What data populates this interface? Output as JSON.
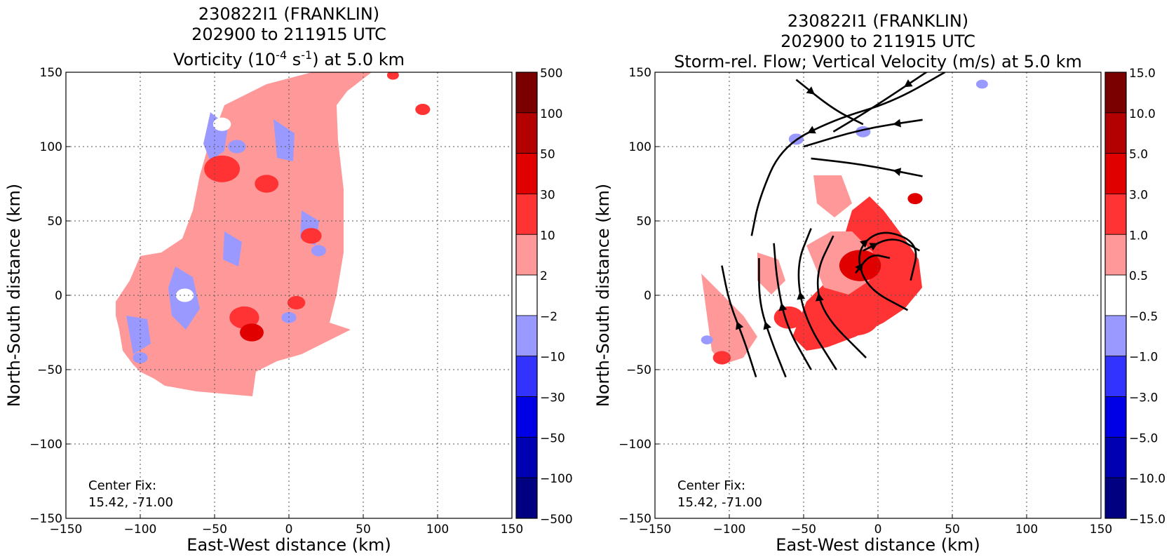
{
  "chart_data": [
    {
      "type": "heatmap",
      "title_lines": [
        "230822I1 (FRANKLIN)",
        "202900 to 211915 UTC"
      ],
      "title_quantity": {
        "pre": "Vorticity (10",
        "sup1": "-4",
        "mid": " s",
        "sup2": "-1",
        "post": ") at 5.0 km"
      },
      "xlabel": "East-West distance (km)",
      "ylabel": "North-South distance (km)",
      "xlim": [
        -150,
        150
      ],
      "ylim": [
        -150,
        150
      ],
      "xticks": [
        -150,
        -100,
        -50,
        0,
        50,
        100,
        150
      ],
      "yticks": [
        -150,
        -100,
        -50,
        0,
        50,
        100,
        150
      ],
      "grid": true,
      "annotation": [
        "Center Fix:",
        "15.42, -71.00"
      ],
      "colorbar": {
        "levels": [
          "500",
          "100",
          "50",
          "30",
          "10",
          "2",
          "−2",
          "−10",
          "−30",
          "−50",
          "−100",
          "−500"
        ],
        "colors": [
          "#7a0000",
          "#b30000",
          "#e00000",
          "#ff3333",
          "#ff9999",
          "#ffffff",
          "#9999ff",
          "#3333ff",
          "#0000e6",
          "#0000b3",
          "#000080"
        ]
      },
      "blobs": [
        {
          "x": 90,
          "y": 125,
          "r": 5,
          "v": 10
        },
        {
          "x": 70,
          "y": 148,
          "r": 4,
          "v": 10
        },
        {
          "x": -45,
          "y": 85,
          "r": 12,
          "v": 10
        },
        {
          "x": -15,
          "y": 75,
          "r": 8,
          "v": 10
        },
        {
          "x": 15,
          "y": 40,
          "r": 7,
          "v": 10
        },
        {
          "x": -30,
          "y": -15,
          "r": 10,
          "v": 10
        },
        {
          "x": -25,
          "y": -25,
          "r": 8,
          "v": 30
        },
        {
          "x": 5,
          "y": -5,
          "r": 6,
          "v": 10
        },
        {
          "x": -45,
          "y": 115,
          "r": 6,
          "v": -2
        },
        {
          "x": -35,
          "y": 100,
          "r": 6,
          "v": -10
        },
        {
          "x": 20,
          "y": 30,
          "r": 5,
          "v": -10
        },
        {
          "x": -100,
          "y": -42,
          "r": 5,
          "v": -10
        },
        {
          "x": 0,
          "y": -15,
          "r": 5,
          "v": -10
        },
        {
          "x": -70,
          "y": 0,
          "r": 6,
          "v": -2
        }
      ]
    },
    {
      "type": "heatmap",
      "title_lines": [
        "230822I1 (FRANKLIN)",
        "202900 to 211915 UTC"
      ],
      "title_quantity": {
        "pre": "Storm-rel. Flow; Vertical Velocity (m/s) at 5.0 km",
        "sup1": "",
        "mid": "",
        "sup2": "",
        "post": ""
      },
      "xlabel": "East-West distance (km)",
      "ylabel": "North-South distance (km)",
      "xlim": [
        -150,
        150
      ],
      "ylim": [
        -150,
        150
      ],
      "xticks": [
        -150,
        -100,
        -50,
        0,
        50,
        100,
        150
      ],
      "yticks": [
        -150,
        -100,
        -50,
        0,
        50,
        100,
        150
      ],
      "grid": true,
      "annotation": [
        "Center Fix:",
        "15.42, -71.00"
      ],
      "colorbar": {
        "levels": [
          "15.0",
          "10.0",
          "5.0",
          "3.0",
          "1.0",
          "0.5",
          "−0.5",
          "−1.0",
          "−3.0",
          "−5.0",
          "−10.0",
          "−15.0"
        ],
        "colors": [
          "#7a0000",
          "#b30000",
          "#e00000",
          "#ff3333",
          "#ff9999",
          "#ffffff",
          "#9999ff",
          "#3333ff",
          "#0000e6",
          "#0000b3",
          "#000080"
        ]
      },
      "blobs": [
        {
          "x": -12,
          "y": 20,
          "r": 14,
          "v": 3
        },
        {
          "x": -15,
          "y": -15,
          "r": 16,
          "v": 1
        },
        {
          "x": 25,
          "y": 65,
          "r": 5,
          "v": 3
        },
        {
          "x": -60,
          "y": -15,
          "r": 10,
          "v": 1
        },
        {
          "x": -105,
          "y": -42,
          "r": 6,
          "v": 1
        },
        {
          "x": -55,
          "y": 105,
          "r": 5,
          "v": -1
        },
        {
          "x": -10,
          "y": 110,
          "r": 5,
          "v": -1
        },
        {
          "x": 70,
          "y": 142,
          "r": 4,
          "v": -1
        },
        {
          "x": -115,
          "y": -30,
          "r": 4,
          "v": -1
        }
      ],
      "streamlines": [
        [
          [
            -82,
            -55
          ],
          [
            -90,
            -30
          ],
          [
            -100,
            -5
          ],
          [
            -105,
            20
          ]
        ],
        [
          [
            -62,
            -55
          ],
          [
            -72,
            -30
          ],
          [
            -80,
            -5
          ],
          [
            -80,
            25
          ]
        ],
        [
          [
            -45,
            -50
          ],
          [
            -62,
            -20
          ],
          [
            -68,
            10
          ],
          [
            -70,
            35
          ]
        ],
        [
          [
            -28,
            -50
          ],
          [
            -50,
            -15
          ],
          [
            -55,
            20
          ],
          [
            -45,
            45
          ]
        ],
        [
          [
            -8,
            -42
          ],
          [
            -38,
            -12
          ],
          [
            -42,
            15
          ],
          [
            -30,
            40
          ]
        ],
        [
          [
            20,
            -10
          ],
          [
            -8,
            5
          ],
          [
            -15,
            30
          ],
          [
            2,
            45
          ],
          [
            28,
            35
          ],
          [
            22,
            10
          ]
        ],
        [
          [
            -10,
            30
          ],
          [
            10,
            40
          ],
          [
            28,
            30
          ]
        ],
        [
          [
            -15,
            15
          ],
          [
            -5,
            28
          ],
          [
            8,
            25
          ]
        ],
        [
          [
            30,
            80
          ],
          [
            -10,
            88
          ],
          [
            -45,
            92
          ]
        ],
        [
          [
            30,
            118
          ],
          [
            -10,
            112
          ],
          [
            -50,
            100
          ]
        ],
        [
          [
            45,
            150
          ],
          [
            10,
            130
          ],
          [
            -30,
            118
          ],
          [
            -65,
            100
          ],
          [
            -80,
            65
          ],
          [
            -85,
            40
          ]
        ],
        [
          [
            40,
            155
          ],
          [
            -5,
            125
          ],
          [
            -30,
            110
          ]
        ],
        [
          [
            -55,
            145
          ],
          [
            -30,
            125
          ],
          [
            -10,
            115
          ]
        ]
      ]
    }
  ]
}
